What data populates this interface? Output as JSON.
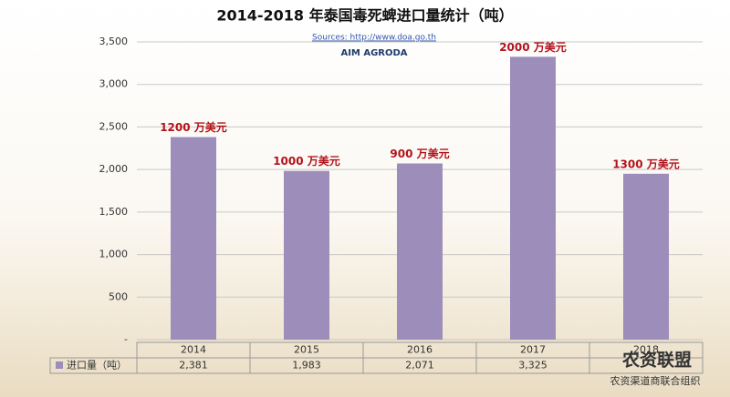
{
  "chart_data": {
    "type": "bar",
    "title": "2014-2018 年泰国毒死蜱进口量统计（吨）",
    "source": "Sources: http://www.doa.go.th",
    "logo": "AIM AGRODA",
    "categories": [
      "2014",
      "2015",
      "2016",
      "2017",
      "2018"
    ],
    "series": [
      {
        "name": "进口量（吨）",
        "color": "#9d8dbb",
        "values": [
          2381,
          1983,
          2071,
          3325,
          1950
        ],
        "value_labels": [
          "2,381",
          "1,983",
          "2,071",
          "3,325",
          null
        ]
      }
    ],
    "annotations": [
      "1200 万美元",
      "1000 万美元",
      "900 万美元",
      "2000 万美元",
      "1300 万美元"
    ],
    "ylim": [
      0,
      3500
    ],
    "yticks": [
      {
        "value": 0,
        "label": "-"
      },
      500,
      {
        "value": 1000,
        "label": "1,000"
      },
      {
        "value": 1500,
        "label": "1,500"
      },
      {
        "value": 2000,
        "label": "2,000"
      },
      {
        "value": 2500,
        "label": "2,500"
      },
      {
        "value": 3000,
        "label": "3,000"
      },
      {
        "value": 3500,
        "label": "3,500"
      }
    ],
    "grid": true
  },
  "watermark": {
    "title": "农资联盟",
    "subtitle": "农资渠道商联合组织"
  }
}
